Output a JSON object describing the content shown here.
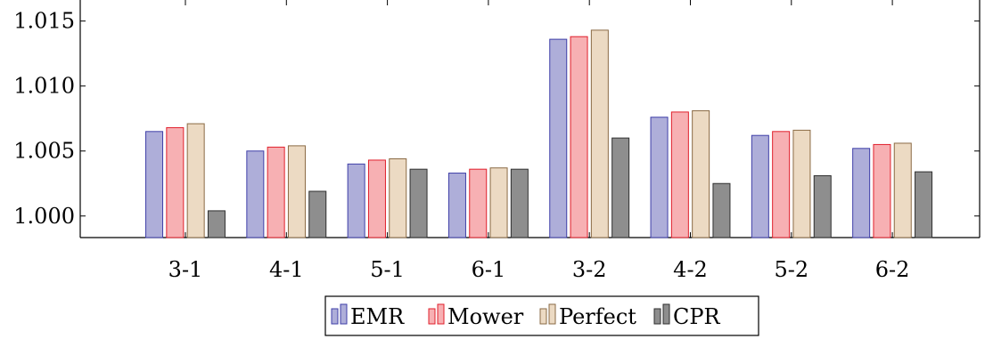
{
  "chart_data": {
    "type": "bar",
    "title": "",
    "xlabel": "",
    "ylabel": "",
    "categories": [
      "3-1",
      "4-1",
      "5-1",
      "6-1",
      "3-2",
      "4-2",
      "5-2",
      "6-2"
    ],
    "series": [
      {
        "name": "EMR",
        "color": "#aeaed9",
        "stroke": "#3f3fa8",
        "values": [
          1.0065,
          1.005,
          1.004,
          1.0033,
          1.0136,
          1.0076,
          1.0062,
          1.0052
        ]
      },
      {
        "name": "Mower",
        "color": "#f7b0b3",
        "stroke": "#e01f2b",
        "values": [
          1.0068,
          1.0053,
          1.0043,
          1.0036,
          1.0138,
          1.008,
          1.0065,
          1.0055
        ]
      },
      {
        "name": "Perfect",
        "color": "#ecdac3",
        "stroke": "#8a6a44",
        "values": [
          1.0071,
          1.0054,
          1.0044,
          1.0037,
          1.0143,
          1.0081,
          1.0066,
          1.0056
        ]
      },
      {
        "name": "CPR",
        "color": "#8e8e8e",
        "stroke": "#2f2f2f",
        "values": [
          1.0004,
          1.0019,
          1.0036,
          1.0036,
          1.006,
          1.0025,
          1.0031,
          1.0034
        ]
      }
    ],
    "yticks": [
      "1.000",
      "1.005",
      "1.010",
      "1.015"
    ],
    "ytick_values": [
      1.0,
      1.005,
      1.01,
      1.015
    ],
    "ylim": [
      0.99834,
      1.01662
    ],
    "grid": false,
    "legend_position": "bottom-center"
  }
}
